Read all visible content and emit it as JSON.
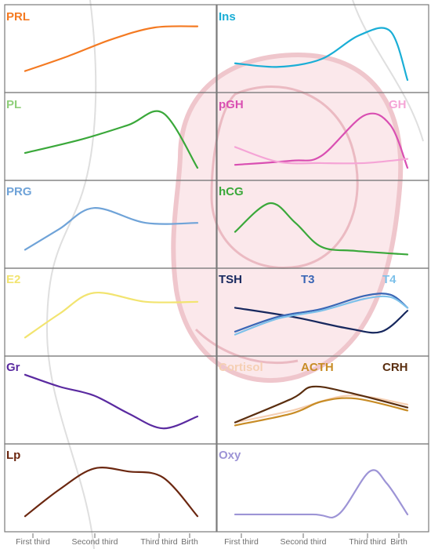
{
  "x_axis": {
    "ticks": [
      "First third",
      "Second third",
      "Third third",
      "Birth"
    ],
    "tick_color": "#6e6e6e",
    "label_color": "#6e6e6e"
  },
  "background_art": {
    "description_name": "pregnant-uterus-fetus-illustration",
    "colors": [
      "#f2c9cf",
      "#dcdcdc"
    ]
  },
  "chart_data": [
    {
      "type": "line",
      "title": "PRL",
      "column": "left",
      "row": 0,
      "ylim": [
        0,
        1
      ],
      "series": [
        {
          "name": "PRL",
          "color": "#f47a22",
          "x": [
            0,
            0.25,
            0.5,
            0.75,
            1
          ],
          "y": [
            0.15,
            0.4,
            0.68,
            0.88,
            0.9
          ]
        }
      ]
    },
    {
      "type": "line",
      "title": "Ins",
      "column": "right",
      "row": 0,
      "ylim": [
        0,
        1
      ],
      "series": [
        {
          "name": "Ins",
          "color": "#1aaed6",
          "x": [
            0,
            0.25,
            0.5,
            0.72,
            0.9,
            1
          ],
          "y": [
            0.28,
            0.22,
            0.35,
            0.75,
            0.82,
            0.0
          ]
        }
      ]
    },
    {
      "type": "line",
      "title": "PL",
      "column": "left",
      "row": 1,
      "ylim": [
        0,
        1
      ],
      "series": [
        {
          "name": "PL",
          "color": "#3aa83a",
          "x": [
            0,
            0.33,
            0.6,
            0.8,
            1
          ],
          "y": [
            0.25,
            0.48,
            0.72,
            0.92,
            0.0
          ]
        }
      ]
    },
    {
      "type": "line",
      "title": "pGH / GH",
      "column": "right",
      "row": 1,
      "ylim": [
        0,
        1
      ],
      "series": [
        {
          "name": "pGH",
          "color": "#d94fb2",
          "x": [
            0,
            0.33,
            0.5,
            0.75,
            0.9,
            1
          ],
          "y": [
            0.05,
            0.12,
            0.2,
            0.88,
            0.72,
            0.0
          ]
        },
        {
          "name": "GH",
          "color": "#f5a4d6",
          "x": [
            0,
            0.25,
            0.5,
            0.75,
            1
          ],
          "y": [
            0.35,
            0.1,
            0.08,
            0.08,
            0.15
          ]
        }
      ]
    },
    {
      "type": "line",
      "title": "PRG",
      "column": "left",
      "row": 2,
      "ylim": [
        0,
        1
      ],
      "series": [
        {
          "name": "PRG",
          "color": "#6fa3d8",
          "x": [
            0,
            0.2,
            0.4,
            0.7,
            1
          ],
          "y": [
            0.1,
            0.45,
            0.8,
            0.55,
            0.55
          ]
        }
      ]
    },
    {
      "type": "line",
      "title": "hCG",
      "column": "right",
      "row": 2,
      "ylim": [
        0,
        1
      ],
      "series": [
        {
          "name": "hCG",
          "color": "#3aa83a",
          "x": [
            0,
            0.2,
            0.35,
            0.5,
            0.7,
            1
          ],
          "y": [
            0.4,
            0.88,
            0.55,
            0.15,
            0.08,
            0.02
          ]
        }
      ]
    },
    {
      "type": "line",
      "title": "E2",
      "column": "left",
      "row": 3,
      "ylim": [
        0,
        1
      ],
      "series": [
        {
          "name": "E2",
          "color": "#f2e470",
          "x": [
            0,
            0.2,
            0.4,
            0.7,
            1
          ],
          "y": [
            0.1,
            0.5,
            0.85,
            0.7,
            0.7
          ]
        }
      ]
    },
    {
      "type": "line",
      "title": "TSH / T3 / T4",
      "column": "right",
      "row": 3,
      "ylim": [
        0,
        1
      ],
      "series": [
        {
          "name": "TSH",
          "color": "#17285e",
          "x": [
            0,
            0.33,
            0.66,
            0.85,
            1
          ],
          "y": [
            0.6,
            0.45,
            0.25,
            0.2,
            0.55
          ]
        },
        {
          "name": "T3",
          "color": "#3a66b5",
          "x": [
            0,
            0.25,
            0.5,
            0.75,
            0.9,
            1
          ],
          "y": [
            0.2,
            0.45,
            0.58,
            0.8,
            0.82,
            0.6
          ]
        },
        {
          "name": "T4",
          "color": "#7ec1ea",
          "x": [
            0,
            0.25,
            0.5,
            0.75,
            0.9,
            1
          ],
          "y": [
            0.15,
            0.42,
            0.55,
            0.75,
            0.78,
            0.6
          ]
        }
      ]
    },
    {
      "type": "line",
      "title": "Gr",
      "column": "left",
      "row": 4,
      "ylim": [
        0,
        1
      ],
      "series": [
        {
          "name": "Gr",
          "color": "#5a2aa0",
          "x": [
            0,
            0.2,
            0.4,
            0.6,
            0.8,
            1
          ],
          "y": [
            0.95,
            0.75,
            0.6,
            0.3,
            0.05,
            0.25
          ]
        }
      ]
    },
    {
      "type": "line",
      "title": "Cortisol / ACTH / CRH",
      "column": "right",
      "row": 4,
      "ylim": [
        0,
        1
      ],
      "series": [
        {
          "name": "Cortisol",
          "color": "#f5cfb3",
          "x": [
            0,
            0.33,
            0.66,
            1
          ],
          "y": [
            0.15,
            0.35,
            0.6,
            0.45
          ]
        },
        {
          "name": "ACTH",
          "color": "#c88c26",
          "x": [
            0,
            0.33,
            0.5,
            0.7,
            1
          ],
          "y": [
            0.1,
            0.3,
            0.5,
            0.55,
            0.35
          ]
        },
        {
          "name": "CRH",
          "color": "#5a2e0f",
          "x": [
            0,
            0.33,
            0.45,
            0.66,
            1
          ],
          "y": [
            0.15,
            0.55,
            0.75,
            0.65,
            0.4
          ]
        }
      ]
    },
    {
      "type": "line",
      "title": "Lp",
      "column": "left",
      "row": 5,
      "ylim": [
        0,
        1
      ],
      "series": [
        {
          "name": "Lp",
          "color": "#6b2710",
          "x": [
            0,
            0.2,
            0.4,
            0.6,
            0.8,
            1
          ],
          "y": [
            0.05,
            0.5,
            0.85,
            0.8,
            0.7,
            0.05
          ]
        }
      ]
    },
    {
      "type": "line",
      "title": "Oxy",
      "column": "right",
      "row": 5,
      "ylim": [
        0,
        1
      ],
      "series": [
        {
          "name": "Oxy",
          "color": "#9d94d6",
          "x": [
            0,
            0.45,
            0.6,
            0.78,
            0.88,
            1
          ],
          "y": [
            0.08,
            0.08,
            0.08,
            0.8,
            0.6,
            0.08
          ]
        }
      ]
    }
  ],
  "panel_label_colors": {
    "PRL": "#f47a22",
    "Ins": "#1aaed6",
    "PL": "#8fcf7a",
    "pGH": "#d94fb2",
    "GH": "#f5a4d6",
    "PRG": "#6fa3d8",
    "hCG": "#3aa83a",
    "E2": "#f2e470",
    "TSH": "#17285e",
    "T3": "#3a66b5",
    "T4": "#7ec1ea",
    "Gr": "#5a2aa0",
    "Cortisol": "#f5cfb3",
    "ACTH": "#c88c26",
    "CRH": "#5a2e0f",
    "Lp": "#6b2710",
    "Oxy": "#9d94d6"
  }
}
